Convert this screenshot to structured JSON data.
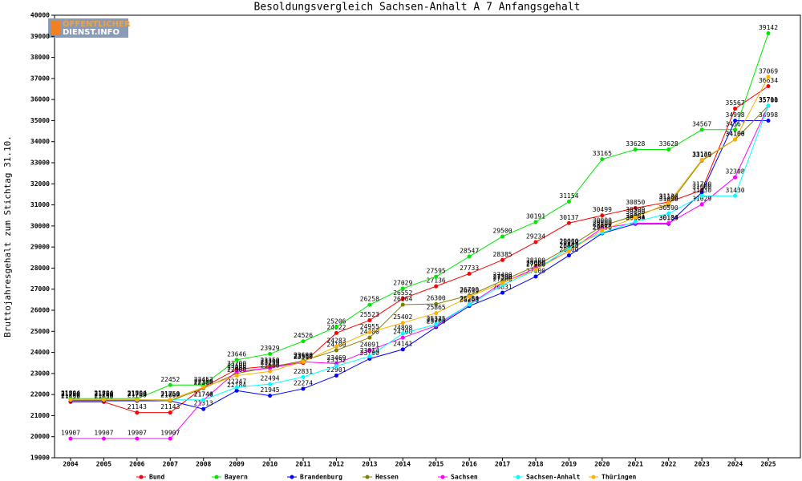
{
  "logo": {
    "line1": "ÖFFENTLICHER",
    "line2": "DIENST.INFO"
  },
  "chart_data": {
    "type": "line",
    "title": "Besoldungsvergleich Sachsen-Anhalt A 7 Anfangsgehalt",
    "y_label": "Bruttojahresgehalt zum Stichtag 31.10.",
    "categories": [
      "2004",
      "2005",
      "2006",
      "2007",
      "2008",
      "2009",
      "2010",
      "2011",
      "2012",
      "2013",
      "2014",
      "2015",
      "2016",
      "2017",
      "2018",
      "2019",
      "2020",
      "2021",
      "2022",
      "2023",
      "2024",
      "2025"
    ],
    "ylim": [
      19000,
      40000
    ],
    "yticks": [
      19000,
      20000,
      21000,
      22000,
      23000,
      24000,
      25000,
      26000,
      27000,
      28000,
      29000,
      30000,
      31000,
      32000,
      33000,
      34000,
      35000,
      36000,
      37000,
      38000,
      39000,
      40000
    ],
    "series": [
      {
        "name": "Bund",
        "color": "#ff0000",
        "values": [
          21650,
          21650,
          21143,
          21143,
          22350,
          23200,
          23350,
          23500,
          24922,
          25523,
          26552,
          27136,
          27733,
          28385,
          29234,
          30137,
          30499,
          30850,
          31137,
          31700,
          35567,
          36634
        ]
      },
      {
        "name": "Bayern",
        "color": "#00e600",
        "values": [
          21804,
          21804,
          21804,
          22452,
          22452,
          23646,
          23929,
          24526,
          25206,
          26258,
          27029,
          27595,
          28547,
          29500,
          30191,
          31154,
          33165,
          33628,
          33628,
          34567,
          34567,
          39142
        ]
      },
      {
        "name": "Brandenburg",
        "color": "#0000ff",
        "values": [
          21700,
          21700,
          21700,
          21700,
          21313,
          22184,
          21945,
          22274,
          22901,
          23700,
          24141,
          25200,
          26200,
          26831,
          27600,
          28600,
          29650,
          30100,
          30100,
          31600,
          34998,
          34998
        ]
      },
      {
        "name": "Hessen",
        "color": "#808000",
        "values": [
          21750,
          21750,
          21750,
          21697,
          22300,
          23000,
          23300,
          23600,
          24100,
          24700,
          26264,
          26300,
          26700,
          27400,
          28100,
          29000,
          30000,
          30500,
          31000,
          33100,
          34100,
          35700
        ]
      },
      {
        "name": "Sachsen",
        "color": "#ff00ff",
        "values": [
          19907,
          19907,
          19907,
          19907,
          21740,
          23100,
          23250,
          23550,
          23469,
          24091,
          24700,
          25265,
          26280,
          27300,
          28000,
          28800,
          29900,
          30134,
          30134,
          31029,
          32308,
          35700
        ]
      },
      {
        "name": "Sachsen-Anhalt",
        "color": "#00ffff",
        "values": [
          21750,
          21750,
          21750,
          21750,
          21744,
          22347,
          22494,
          22831,
          23352,
          23814,
          24898,
          25335,
          26264,
          27200,
          27906,
          28959,
          29676,
          30201,
          30590,
          31430,
          31430,
          35711
        ]
      },
      {
        "name": "Thüringen",
        "color": "#ffb000",
        "values": [
          21750,
          21750,
          21750,
          21750,
          22350,
          22900,
          23100,
          23550,
          24283,
          24955,
          25402,
          25865,
          26639,
          27308,
          27920,
          28813,
          29800,
          30400,
          31100,
          33139,
          34108,
          37069
        ]
      }
    ]
  }
}
